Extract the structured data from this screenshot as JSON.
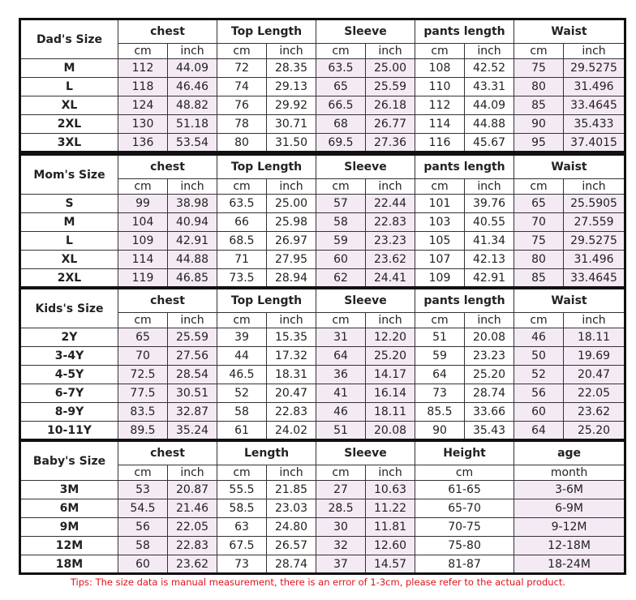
{
  "tables": [
    {
      "title": "Dad's Size",
      "groups": [
        "chest",
        "Top Length",
        "Sleeve",
        "pants length",
        "Waist"
      ],
      "units": [
        "cm",
        "inch",
        "cm",
        "inch",
        "cm",
        "inch",
        "cm",
        "inch",
        "cm",
        "inch"
      ],
      "rows": [
        {
          "size": "M",
          "values": [
            "112",
            "44.09",
            "72",
            "28.35",
            "63.5",
            "25.00",
            "108",
            "42.52",
            "75",
            "29.5275"
          ]
        },
        {
          "size": "L",
          "values": [
            "118",
            "46.46",
            "74",
            "29.13",
            "65",
            "25.59",
            "110",
            "43.31",
            "80",
            "31.496"
          ]
        },
        {
          "size": "XL",
          "values": [
            "124",
            "48.82",
            "76",
            "29.92",
            "66.5",
            "26.18",
            "112",
            "44.09",
            "85",
            "33.4645"
          ]
        },
        {
          "size": "2XL",
          "values": [
            "130",
            "51.18",
            "78",
            "30.71",
            "68",
            "26.77",
            "114",
            "44.88",
            "90",
            "35.433"
          ]
        },
        {
          "size": "3XL",
          "values": [
            "136",
            "53.54",
            "80",
            "31.50",
            "69.5",
            "27.36",
            "116",
            "45.67",
            "95",
            "37.4015"
          ]
        }
      ]
    },
    {
      "title": "Mom's Size",
      "groups": [
        "chest",
        "Top Length",
        "Sleeve",
        "pants length",
        "Waist"
      ],
      "units": [
        "cm",
        "inch",
        "cm",
        "inch",
        "cm",
        "inch",
        "cm",
        "inch",
        "cm",
        "inch"
      ],
      "rows": [
        {
          "size": "S",
          "values": [
            "99",
            "38.98",
            "63.5",
            "25.00",
            "57",
            "22.44",
            "101",
            "39.76",
            "65",
            "25.5905"
          ]
        },
        {
          "size": "M",
          "values": [
            "104",
            "40.94",
            "66",
            "25.98",
            "58",
            "22.83",
            "103",
            "40.55",
            "70",
            "27.559"
          ]
        },
        {
          "size": "L",
          "values": [
            "109",
            "42.91",
            "68.5",
            "26.97",
            "59",
            "23.23",
            "105",
            "41.34",
            "75",
            "29.5275"
          ]
        },
        {
          "size": "XL",
          "values": [
            "114",
            "44.88",
            "71",
            "27.95",
            "60",
            "23.62",
            "107",
            "42.13",
            "80",
            "31.496"
          ]
        },
        {
          "size": "2XL",
          "values": [
            "119",
            "46.85",
            "73.5",
            "28.94",
            "62",
            "24.41",
            "109",
            "42.91",
            "85",
            "33.4645"
          ]
        }
      ]
    },
    {
      "title": "Kids's Size",
      "groups": [
        "chest",
        "Top Length",
        "Sleeve",
        "pants length",
        "Waist"
      ],
      "units": [
        "cm",
        "inch",
        "cm",
        "inch",
        "cm",
        "inch",
        "cm",
        "inch",
        "cm",
        "inch"
      ],
      "rows": [
        {
          "size": "2Y",
          "values": [
            "65",
            "25.59",
            "39",
            "15.35",
            "31",
            "12.20",
            "51",
            "20.08",
            "46",
            "18.11"
          ]
        },
        {
          "size": "3-4Y",
          "values": [
            "70",
            "27.56",
            "44",
            "17.32",
            "64",
            "25.20",
            "59",
            "23.23",
            "50",
            "19.69"
          ]
        },
        {
          "size": "4-5Y",
          "values": [
            "72.5",
            "28.54",
            "46.5",
            "18.31",
            "36",
            "14.17",
            "64",
            "25.20",
            "52",
            "20.47"
          ]
        },
        {
          "size": "6-7Y",
          "values": [
            "77.5",
            "30.51",
            "52",
            "20.47",
            "41",
            "16.14",
            "73",
            "28.74",
            "56",
            "22.05"
          ]
        },
        {
          "size": "8-9Y",
          "values": [
            "83.5",
            "32.87",
            "58",
            "22.83",
            "46",
            "18.11",
            "85.5",
            "33.66",
            "60",
            "23.62"
          ]
        },
        {
          "size": "10-11Y",
          "values": [
            "89.5",
            "35.24",
            "61",
            "24.02",
            "51",
            "20.08",
            "90",
            "35.43",
            "64",
            "25.20"
          ]
        }
      ]
    },
    {
      "title": "Baby's Size",
      "groups": [
        "chest",
        "Length",
        "Sleeve",
        "Height",
        "age"
      ],
      "units": [
        "cm",
        "inch",
        "cm",
        "inch",
        "cm",
        "inch",
        "cm",
        "month"
      ],
      "rows": [
        {
          "size": "3M",
          "values": [
            "53",
            "20.87",
            "55.5",
            "21.85",
            "27",
            "10.63",
            "61-65",
            "3-6M"
          ]
        },
        {
          "size": "6M",
          "values": [
            "54.5",
            "21.46",
            "58.5",
            "23.03",
            "28.5",
            "11.22",
            "65-70",
            "6-9M"
          ]
        },
        {
          "size": "9M",
          "values": [
            "56",
            "22.05",
            "63",
            "24.80",
            "30",
            "11.81",
            "70-75",
            "9-12M"
          ]
        },
        {
          "size": "12M",
          "values": [
            "58",
            "22.83",
            "67.5",
            "26.57",
            "32",
            "12.60",
            "75-80",
            "12-18M"
          ]
        },
        {
          "size": "18M",
          "values": [
            "60",
            "23.62",
            "73",
            "28.74",
            "37",
            "14.57",
            "81-87",
            "18-24M"
          ]
        }
      ]
    }
  ],
  "tips": "Tips: The size data is manual measurement, there is an error of 1-3cm, please refer to the actual product.",
  "colors": {
    "shade": "#f4eaf4",
    "tips": "#e0101a",
    "border": "#111111"
  }
}
